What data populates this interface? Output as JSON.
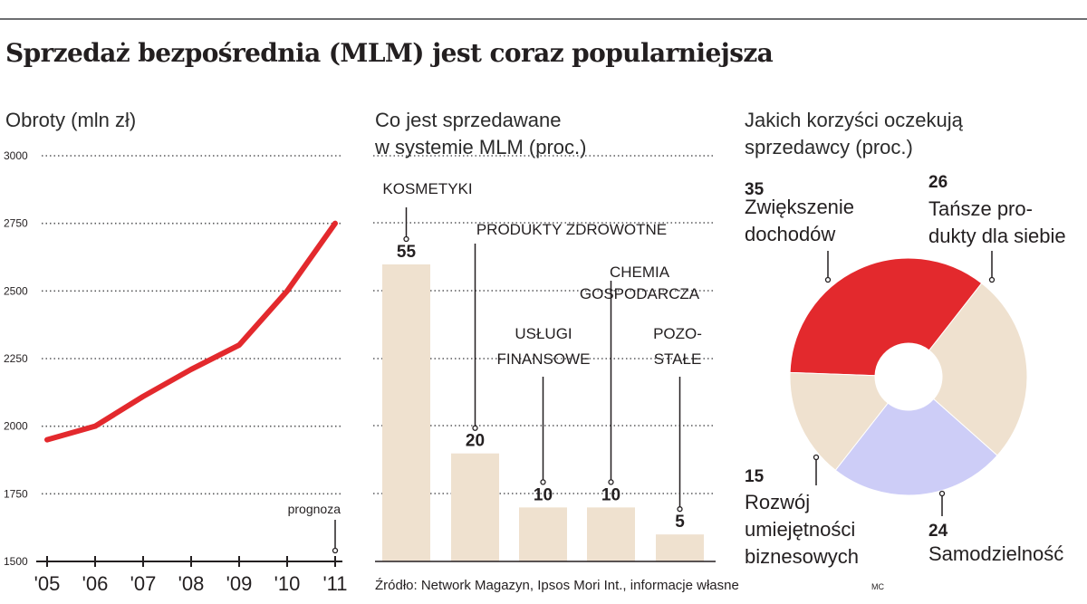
{
  "page": {
    "title": "Sprzedaż bezpośrednia (MLM) jest coraz popularniejsza",
    "source": "Źródło: Network Magazyn, Ipsos Mori Int., informacje własne",
    "author": "MC"
  },
  "colors": {
    "line": "#e3292d",
    "bar": "#efe1cf",
    "pie_red": "#e3292d",
    "pie_beige": "#efe1cf",
    "pie_lavender": "#cdcdf7",
    "grid": "#58595b",
    "text": "#231f20"
  },
  "chart_data": [
    {
      "type": "line",
      "title": "Obroty (mln zł)",
      "x": [
        "'05",
        "'06",
        "'07",
        "'08",
        "'09",
        "'10",
        "'11"
      ],
      "series": [
        {
          "values": [
            1950,
            2000,
            2110,
            2210,
            2300,
            2500,
            2750
          ]
        }
      ],
      "ylim": [
        1500,
        3000
      ],
      "yticks": [
        "3000",
        "2750",
        "2500",
        "2250",
        "2000",
        "1750",
        "1500"
      ],
      "annotation": "prognoza",
      "grid": true
    },
    {
      "type": "bar",
      "title": "Co jest sprzedawane w systemie MLM (proc.)",
      "title_lines": [
        "Co jest sprzedawane",
        "w systemie MLM (proc.)"
      ],
      "categories": [
        "KOSMETYKI",
        "PRODUKTY ZDROWOTNE",
        "USŁUGI FINANSOWE",
        "CHEMIA GOSPODARCZA",
        "POZOSTAŁE"
      ],
      "category_lines": [
        [
          "KOSMETYKI"
        ],
        [
          "PRODUKTY ZDROWOTNE"
        ],
        [
          "USŁUGI",
          "FINANSOWE"
        ],
        [
          "CHEMIA",
          "GOSPODARCZA"
        ],
        [
          "POZO-",
          "STAŁE"
        ]
      ],
      "values": [
        55,
        20,
        10,
        10,
        5
      ],
      "value_labels": [
        "55",
        "20",
        "10",
        "10",
        "5"
      ],
      "ylim": [
        0,
        55
      ],
      "grid": true
    },
    {
      "type": "pie",
      "title": "Jakich korzyści oczekują sprzedawcy (proc.)",
      "title_lines": [
        "Jakich korzyści oczekują",
        "sprzedawcy (proc.)"
      ],
      "slices": [
        {
          "label": "Zwiększenie dochodów",
          "label_lines": [
            "Zwiększenie",
            "dochodów"
          ],
          "value": 35,
          "value_label": "35",
          "color": "#e3292d"
        },
        {
          "label": "Tańsze produkty dla siebie",
          "label_lines": [
            "Tańsze pro-",
            "dukty dla siebie"
          ],
          "value": 26,
          "value_label": "26",
          "color": "#efe1cf"
        },
        {
          "label": "Samodzielność",
          "label_lines": [
            "Samodzielność"
          ],
          "value": 24,
          "value_label": "24",
          "color": "#cdcdf7"
        },
        {
          "label": "Rozwój umiejętności biznesowych",
          "label_lines": [
            "Rozwój",
            "umiejętności",
            "biznesowych"
          ],
          "value": 15,
          "value_label": "15",
          "color": "#efe1cf"
        }
      ],
      "donut": true
    }
  ]
}
